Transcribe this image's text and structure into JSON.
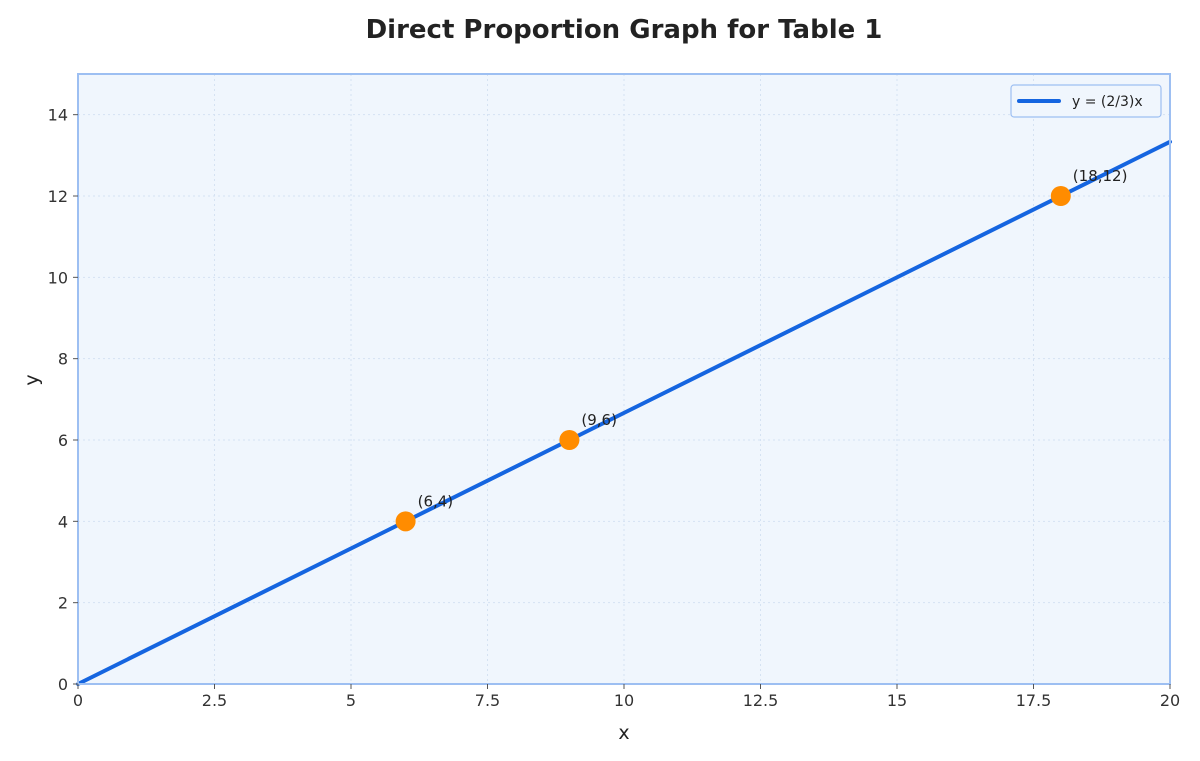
{
  "chart_data": {
    "type": "line",
    "title": "Direct Proportion Graph for Table 1",
    "xlabel": "x",
    "ylabel": "y",
    "xlim": [
      0,
      20
    ],
    "ylim": [
      0,
      15
    ],
    "xticks": [
      0,
      2.5,
      5,
      7.5,
      10,
      12.5,
      15,
      17.5,
      20
    ],
    "xtick_labels": [
      "0",
      "2.5",
      "5",
      "7.5",
      "10",
      "12.5",
      "15",
      "17.5",
      "20"
    ],
    "yticks": [
      0,
      2,
      4,
      6,
      8,
      10,
      12,
      14
    ],
    "ytick_labels": [
      "0",
      "2",
      "4",
      "6",
      "8",
      "10",
      "12",
      "14"
    ],
    "grid": true,
    "legend_position": "top-right",
    "series": [
      {
        "name": "y = (2/3)x",
        "kind": "line",
        "color": "#1565e0",
        "x": [
          0,
          20
        ],
        "y": [
          0,
          13.3333
        ]
      }
    ],
    "points": [
      {
        "x": 6,
        "y": 4,
        "label": "(6,4)"
      },
      {
        "x": 9,
        "y": 6,
        "label": "(9,6)"
      },
      {
        "x": 18,
        "y": 12,
        "label": "(18,12)"
      }
    ],
    "point_color": "#ff8c00",
    "background_color": "#f0f6fd",
    "frame_color": "#9dbff2"
  }
}
